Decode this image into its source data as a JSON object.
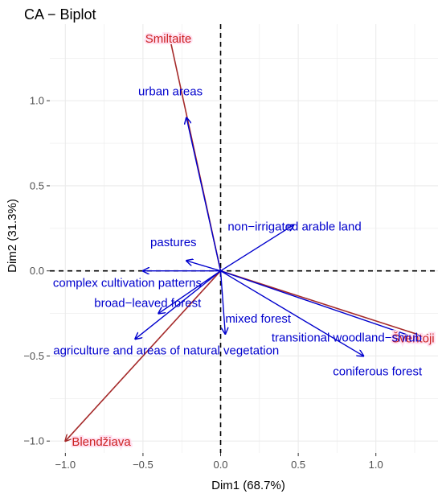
{
  "chart_data": {
    "type": "scatter",
    "title": "CA − Biplot",
    "xlabel": "Dim1 (68.7%)",
    "ylabel": "Dim2 (31.3%)",
    "xlim": [
      -1.1,
      1.4
    ],
    "ylim": [
      -1.07,
      1.45
    ],
    "x_ticks": [
      -1.0,
      -0.5,
      0.0,
      0.5,
      1.0
    ],
    "x_tick_labels": [
      "−1.0",
      "−0.5",
      "0.0",
      "0.5",
      "1.0"
    ],
    "y_ticks": [
      -1.0,
      -0.5,
      0.0,
      0.5,
      1.0
    ],
    "y_tick_labels": [
      "−1.0",
      "−0.5",
      "0.0",
      "0.5",
      "1.0"
    ],
    "grid": true,
    "reference_lines": {
      "x": 0,
      "y": 0
    },
    "colors": {
      "columns": "#a52a2a",
      "rows": "#0000cd",
      "column_label": "#cc2222",
      "column_label_highlight": "#ffe0f0",
      "panel_background": "#ffffff",
      "grid": "#ebebeb"
    },
    "series": [
      {
        "name": "columns",
        "points": [
          {
            "label": "Smiltaite",
            "x": -0.33,
            "y": 1.38
          },
          {
            "label": "Šventoji",
            "x": 1.36,
            "y": -0.4
          },
          {
            "label": "Blendžiava",
            "x": -1.0,
            "y": -1.0
          }
        ]
      },
      {
        "name": "rows",
        "points": [
          {
            "label": "urban areas",
            "x": -0.22,
            "y": 0.9
          },
          {
            "label": "non−irrigated arable land",
            "x": 0.47,
            "y": 0.27
          },
          {
            "label": "pastures",
            "x": -0.22,
            "y": 0.06
          },
          {
            "label": "complex cultivation patterns",
            "x": -0.5,
            "y": 0.0
          },
          {
            "label": "broad−leaved forest",
            "x": -0.4,
            "y": -0.25
          },
          {
            "label": "mixed forest",
            "x": 0.03,
            "y": -0.37
          },
          {
            "label": "transitional woodland−shrub",
            "x": 1.28,
            "y": -0.4
          },
          {
            "label": "agriculture and areas of natural vegetation",
            "x": -0.55,
            "y": -0.4
          },
          {
            "label": "coniferous forest",
            "x": 0.92,
            "y": -0.5
          }
        ]
      }
    ]
  }
}
